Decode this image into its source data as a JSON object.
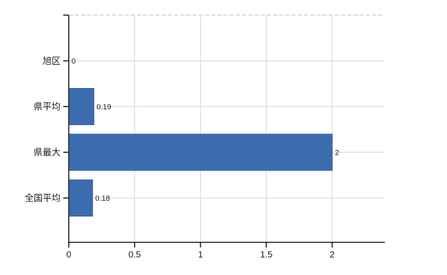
{
  "chart_data": {
    "type": "bar",
    "orientation": "horizontal",
    "title": "",
    "categories": [
      "旭区",
      "県平均",
      "県最大",
      "全国平均"
    ],
    "values": [
      0,
      0.19,
      2,
      0.18
    ],
    "value_labels": [
      "0",
      "0.19",
      "2",
      "0.18"
    ],
    "x_ticks": [
      0,
      0.5,
      1,
      1.5,
      2
    ],
    "x_tick_labels": [
      "0",
      "0.5",
      "1",
      "1.5",
      "2"
    ],
    "xlim": [
      0,
      2.4
    ],
    "grid": true,
    "legend": false,
    "colors": {
      "bar": "#3b6cae",
      "grid": "#d9ddd9",
      "top_border_dashed": "#c9cbc9",
      "axis": "#141414",
      "text": "#1a1a1a"
    }
  }
}
